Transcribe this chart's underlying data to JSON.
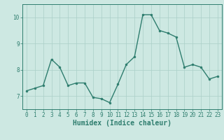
{
  "title": "",
  "xlabel": "Humidex (Indice chaleur)",
  "ylabel": "",
  "x": [
    0,
    1,
    2,
    3,
    4,
    5,
    6,
    7,
    8,
    9,
    10,
    11,
    12,
    13,
    14,
    15,
    16,
    17,
    18,
    19,
    20,
    21,
    22,
    23
  ],
  "y": [
    7.2,
    7.3,
    7.4,
    8.4,
    8.1,
    7.4,
    7.5,
    7.5,
    6.95,
    6.9,
    6.75,
    7.45,
    8.2,
    8.5,
    10.1,
    10.1,
    9.5,
    9.4,
    9.25,
    8.1,
    8.2,
    8.1,
    7.65,
    7.75
  ],
  "line_color": "#2e7d6e",
  "marker": "o",
  "marker_size": 2.0,
  "bg_color": "#cde8e2",
  "grid_color": "#aacfc8",
  "axis_color": "#2e7d6e",
  "tick_color": "#2e7d6e",
  "label_color": "#2e7d6e",
  "xlim": [
    -0.5,
    23.5
  ],
  "ylim": [
    6.5,
    10.5
  ],
  "yticks": [
    7,
    8,
    9,
    10
  ],
  "xticks": [
    0,
    1,
    2,
    3,
    4,
    5,
    6,
    7,
    8,
    9,
    10,
    11,
    12,
    13,
    14,
    15,
    16,
    17,
    18,
    19,
    20,
    21,
    22,
    23
  ],
  "tick_fontsize": 5.5,
  "xlabel_fontsize": 7.0,
  "line_width": 1.0
}
